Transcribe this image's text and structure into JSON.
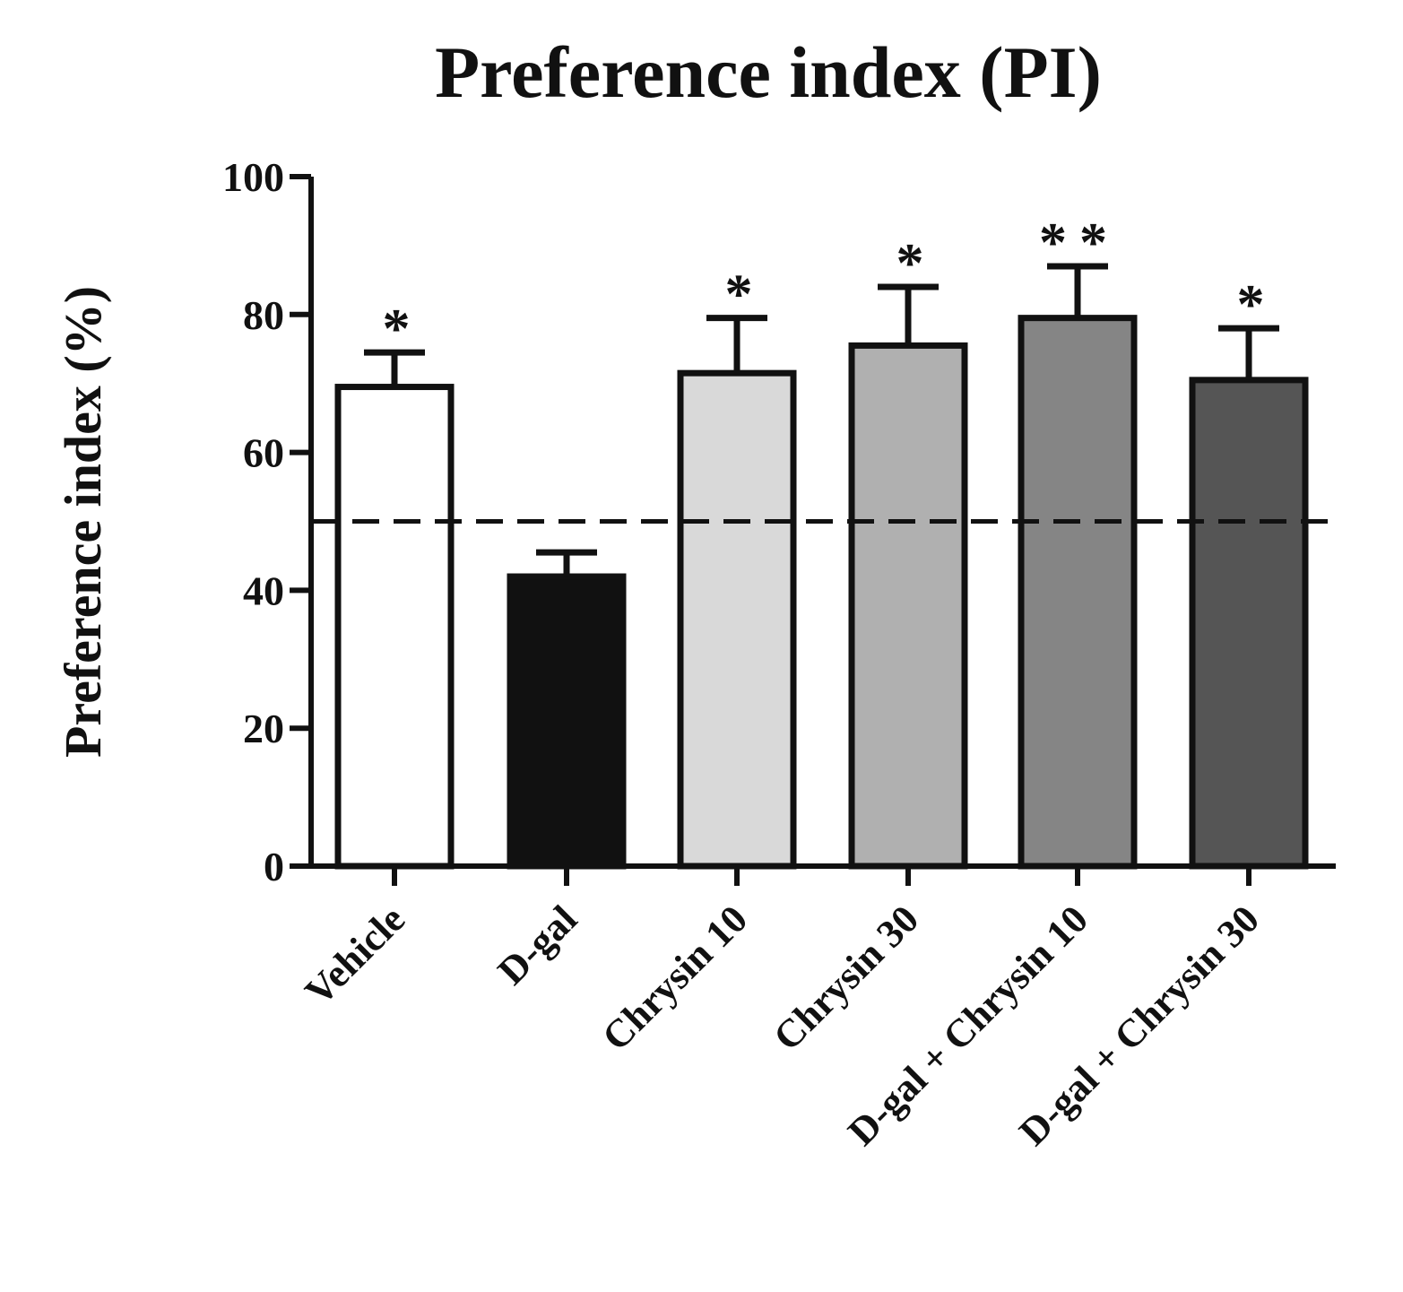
{
  "chart_data": {
    "type": "bar",
    "title": "Preference index (PI)",
    "xlabel": "",
    "ylabel": "Preference index (%)",
    "ylim": [
      0,
      100
    ],
    "yticks": [
      0,
      20,
      40,
      60,
      80,
      100
    ],
    "categories": [
      "Vehicle",
      "D-gal",
      "Chrysin 10",
      "Chrysin 30",
      "D-gal + Chrysin 10",
      "D-gal + Chrysin 30"
    ],
    "values": [
      69.5,
      42,
      71.5,
      75.5,
      79.5,
      70.5
    ],
    "errors": [
      5,
      3.5,
      8,
      8.5,
      7.5,
      7.5
    ],
    "significance": [
      "*",
      "",
      "*",
      "*",
      "**",
      "*"
    ],
    "fills": [
      "#ffffff",
      "#111111",
      "#d9d9d9",
      "#b0b0b0",
      "#858585",
      "#555555"
    ],
    "reference_line": 50
  }
}
